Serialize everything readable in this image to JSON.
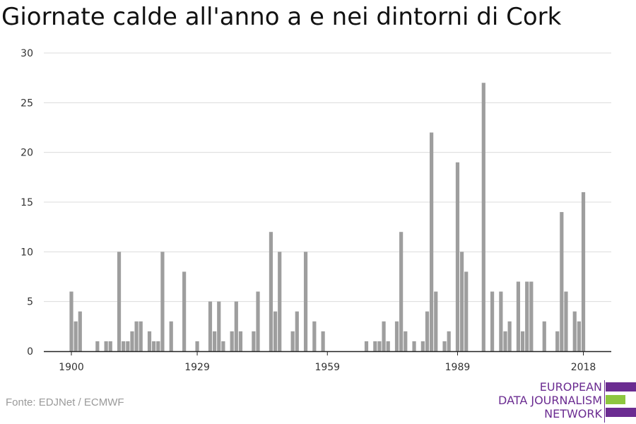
{
  "chart_data": {
    "type": "bar",
    "title": "Giornate calde all'anno a e nei dintorni di Cork",
    "xlabel": "",
    "ylabel": "",
    "ylim": [
      0,
      30
    ],
    "yticks": [
      0,
      5,
      10,
      15,
      20,
      25,
      30
    ],
    "xticks": [
      1900,
      1929,
      1959,
      1989,
      2018
    ],
    "grid": true,
    "color": "#9e9e9e",
    "years": [
      1900,
      1901,
      1902,
      1903,
      1904,
      1905,
      1906,
      1907,
      1908,
      1909,
      1910,
      1911,
      1912,
      1913,
      1914,
      1915,
      1916,
      1917,
      1918,
      1919,
      1920,
      1921,
      1922,
      1923,
      1924,
      1925,
      1926,
      1927,
      1928,
      1929,
      1930,
      1931,
      1932,
      1933,
      1934,
      1935,
      1936,
      1937,
      1938,
      1939,
      1940,
      1941,
      1942,
      1943,
      1944,
      1945,
      1946,
      1947,
      1948,
      1949,
      1950,
      1951,
      1952,
      1953,
      1954,
      1955,
      1956,
      1957,
      1958,
      1959,
      1960,
      1961,
      1962,
      1963,
      1964,
      1965,
      1966,
      1967,
      1968,
      1969,
      1970,
      1971,
      1972,
      1973,
      1974,
      1975,
      1976,
      1977,
      1978,
      1979,
      1980,
      1981,
      1982,
      1983,
      1984,
      1985,
      1986,
      1987,
      1988,
      1989,
      1990,
      1991,
      1992,
      1993,
      1994,
      1995,
      1996,
      1997,
      1998,
      1999,
      2000,
      2001,
      2002,
      2003,
      2004,
      2005,
      2006,
      2007,
      2008,
      2009,
      2010,
      2011,
      2012,
      2013,
      2014,
      2015,
      2016,
      2017,
      2018,
      2019,
      2020
    ],
    "values": [
      6,
      3,
      4,
      0,
      0,
      0,
      1,
      0,
      1,
      1,
      0,
      10,
      1,
      1,
      2,
      3,
      3,
      0,
      2,
      1,
      1,
      10,
      0,
      3,
      0,
      0,
      8,
      0,
      0,
      1,
      0,
      0,
      5,
      2,
      5,
      1,
      0,
      2,
      5,
      2,
      0,
      0,
      2,
      6,
      0,
      0,
      12,
      4,
      10,
      0,
      0,
      2,
      4,
      0,
      10,
      0,
      3,
      0,
      2,
      0,
      0,
      0,
      0,
      0,
      0,
      0,
      0,
      0,
      1,
      0,
      1,
      1,
      3,
      1,
      0,
      3,
      12,
      2,
      0,
      1,
      0,
      1,
      4,
      22,
      6,
      0,
      1,
      2,
      0,
      19,
      10,
      8,
      0,
      0,
      0,
      27,
      0,
      6,
      0,
      6,
      2,
      3,
      0,
      7,
      2,
      7,
      7,
      0,
      0,
      3,
      0,
      0,
      2,
      14,
      6,
      0,
      4,
      3,
      16,
      0,
      0
    ]
  },
  "source": "Fonte: EDJNet / ECMWF",
  "logo": {
    "lines": [
      "EUROPEAN",
      "DATA JOURNALISM",
      "NETWORK"
    ],
    "colors": {
      "purple": "#6b2c91",
      "green": "#8dc63f"
    }
  }
}
